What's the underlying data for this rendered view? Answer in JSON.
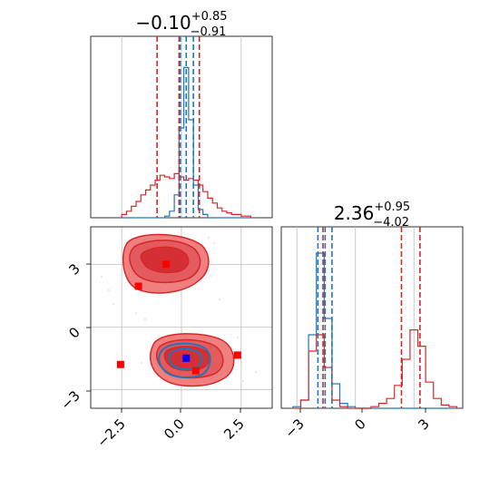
{
  "colors": {
    "blue": "#1f77b4",
    "red": "#d62728",
    "red_light": "#f08080",
    "red_mid": "#e35a5f",
    "red_dark": "#d32f34",
    "pink": "#f7b6c2",
    "grid": "#bfbfbf",
    "blue_point": "#0000ff",
    "red_point": "#ff0000"
  },
  "chart_data": [
    {
      "type": "histogram",
      "panel": "marginal-param1",
      "title": {
        "value": "−0.10",
        "sup": "+0.85",
        "sub": "−0.91"
      },
      "xlim": [
        -3.8,
        3.8
      ],
      "grid": true,
      "bins_x": [
        -2.4,
        -2.2,
        -2.0,
        -1.8,
        -1.6,
        -1.4,
        -1.2,
        -1.0,
        -0.8,
        -0.6,
        -0.4,
        -0.2,
        0.0,
        0.2,
        0.4,
        0.6,
        0.8,
        1.0,
        1.2,
        1.4,
        1.6,
        1.8,
        2.0,
        2.2,
        2.4,
        2.6,
        2.8
      ],
      "series": [
        {
          "color": "blue",
          "values": [
            0,
            0,
            0,
            0,
            0,
            0,
            0,
            0,
            0,
            0.01,
            0.04,
            0.14,
            0.55,
            0.92,
            0.6,
            0.2,
            0.05,
            0.02,
            0,
            0,
            0,
            0,
            0,
            0,
            0,
            0,
            0
          ]
        },
        {
          "color": "red",
          "values": [
            0.02,
            0.04,
            0.07,
            0.1,
            0.14,
            0.17,
            0.2,
            0.23,
            0.26,
            0.25,
            0.24,
            0.27,
            0.25,
            0.23,
            0.24,
            0.23,
            0.2,
            0.16,
            0.12,
            0.09,
            0.06,
            0.04,
            0.03,
            0.02,
            0.02,
            0.01,
            0.01
          ]
        }
      ],
      "quantile_lines": [
        {
          "color": "red",
          "x": [
            -1.02,
            -0.1,
            0.75
          ]
        },
        {
          "color": "blue",
          "x": [
            -0.05,
            0.2,
            0.5
          ]
        }
      ]
    },
    {
      "type": "histogram",
      "panel": "marginal-param2",
      "title": {
        "value": "2.36",
        "sup": "+0.95",
        "sub": "−4.02"
      },
      "xlim": [
        -3.8,
        5.5
      ],
      "xticks": [
        "−3",
        "0",
        "3"
      ],
      "grid": true,
      "bins_x": [
        -3.0,
        -2.6,
        -2.2,
        -1.8,
        -1.4,
        -1.0,
        -0.6,
        -0.2,
        0.2,
        0.6,
        1.0,
        1.4,
        1.8,
        2.2,
        2.6,
        3.0,
        3.4,
        3.8,
        4.2,
        4.6,
        5.0
      ],
      "series": [
        {
          "color": "blue",
          "values": [
            0.01,
            0.05,
            0.45,
            0.95,
            0.55,
            0.15,
            0.03,
            0.01,
            0,
            0,
            0,
            0,
            0,
            0,
            0,
            0,
            0,
            0,
            0,
            0,
            0
          ]
        },
        {
          "color": "red",
          "values": [
            0,
            0.05,
            0.35,
            0.45,
            0.25,
            0.05,
            0.01,
            0,
            0,
            0,
            0.01,
            0.03,
            0.06,
            0.14,
            0.3,
            0.48,
            0.38,
            0.16,
            0.06,
            0.02,
            0.01
          ]
        }
      ],
      "quantile_lines": [
        {
          "color": "red",
          "x": [
            -1.66,
            2.36,
            3.31
          ]
        },
        {
          "color": "blue",
          "x": [
            -1.92,
            -1.55,
            -1.2
          ]
        }
      ]
    },
    {
      "type": "contour",
      "panel": "joint",
      "xlim": [
        -3.8,
        3.8
      ],
      "ylim": [
        -3.9,
        4.8
      ],
      "xticks": [
        "−2.5",
        "0.0",
        "2.5"
      ],
      "yticks": [
        "3",
        "0",
        "−3"
      ],
      "grid": true,
      "red_points": [
        [
          -0.65,
          3.0
        ],
        [
          -1.8,
          1.95
        ],
        [
          -2.55,
          -1.8
        ],
        [
          0.6,
          -2.1
        ],
        [
          2.35,
          -1.35
        ]
      ],
      "blue_points": [
        [
          0.2,
          -1.5
        ]
      ]
    }
  ]
}
